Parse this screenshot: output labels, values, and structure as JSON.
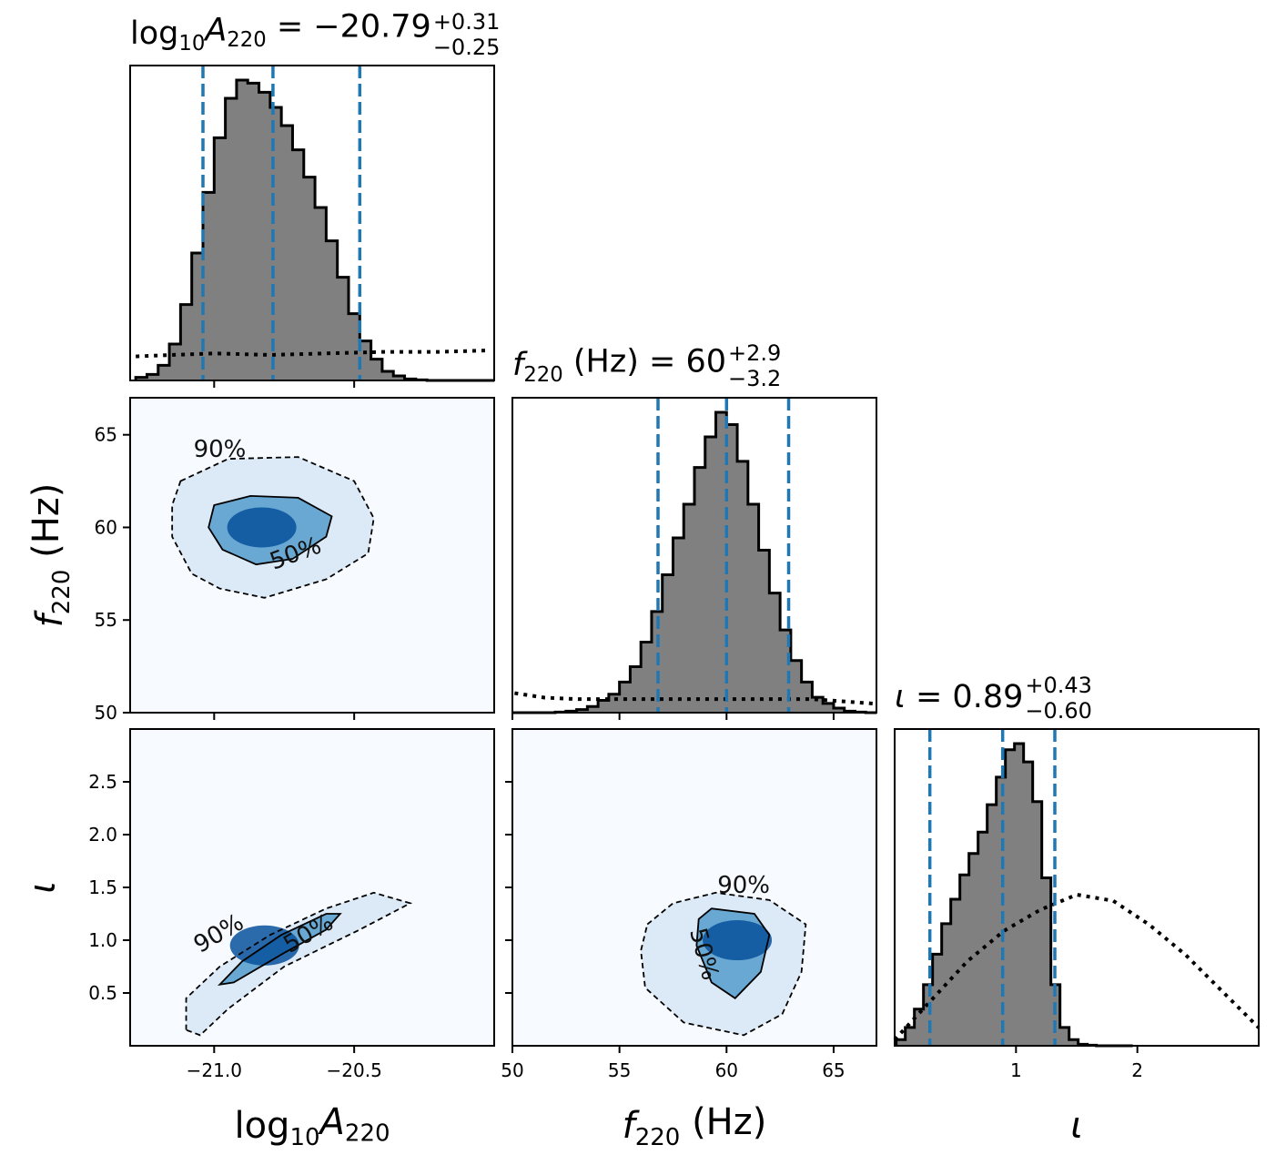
{
  "figure": {
    "type": "corner",
    "parameters": [
      {
        "symbol": "log10A220",
        "xlabel_main": "log",
        "xlabel_sub": "10",
        "xlabel_var": "A",
        "xlabel_sub2": "220",
        "xlabel_unit": "",
        "range": [
          -21.3,
          -20.0
        ]
      },
      {
        "symbol": "f220",
        "xlabel_main": "",
        "xlabel_sub": "",
        "xlabel_var": "f",
        "xlabel_sub2": "220",
        "xlabel_unit": " (Hz)",
        "range": [
          50,
          67
        ]
      },
      {
        "symbol": "iota",
        "xlabel_main": "",
        "xlabel_sub": "",
        "xlabel_var": "ι",
        "xlabel_sub2": "",
        "xlabel_unit": "",
        "range": [
          0.0,
          3.0
        ]
      }
    ],
    "titles": [
      {
        "pre": "log",
        "sub1": "10",
        "var": "A",
        "sub2": "220",
        "eq": " = −20.79",
        "plus": "+0.31",
        "minus": "−0.25"
      },
      {
        "pre": "",
        "sub1": "",
        "var": "f",
        "sub2": "220",
        "eq": " (Hz) = 60",
        "plus": "+2.9",
        "minus": "−3.2"
      },
      {
        "pre": "",
        "sub1": "",
        "var": "ι",
        "sub2": "",
        "eq": " = 0.89",
        "plus": "+0.43",
        "minus": "−0.60"
      }
    ],
    "colors": {
      "hist_fill": "#808080",
      "hist_edge": "#000000",
      "quantile": "#1f77b4",
      "prior": "#000000",
      "density": "#08519c",
      "density_low": "#f7fbff"
    }
  },
  "chart_data": [
    {
      "type": "histogram",
      "param": "log10A220",
      "xlim": [
        -21.3,
        -20.0
      ],
      "quantiles": [
        -21.04,
        -20.79,
        -20.48
      ],
      "posterior": {
        "centers": [
          -21.26,
          -21.22,
          -21.18,
          -21.14,
          -21.1,
          -21.06,
          -21.02,
          -20.98,
          -20.94,
          -20.9,
          -20.86,
          -20.82,
          -20.78,
          -20.74,
          -20.7,
          -20.66,
          -20.62,
          -20.58,
          -20.54,
          -20.5,
          -20.46,
          -20.42,
          -20.38,
          -20.34,
          -20.3,
          -20.26,
          -20.22,
          -20.18,
          -20.14,
          -20.1,
          -20.06,
          -20.02
        ],
        "counts": [
          0.01,
          0.02,
          0.05,
          0.12,
          0.25,
          0.42,
          0.62,
          0.8,
          0.93,
          0.99,
          0.98,
          0.95,
          0.9,
          0.84,
          0.76,
          0.67,
          0.57,
          0.46,
          0.34,
          0.22,
          0.13,
          0.07,
          0.03,
          0.015,
          0.005,
          0.002,
          0,
          0,
          0,
          0,
          0,
          0
        ]
      },
      "prior": {
        "x": [
          -21.28,
          -21.15,
          -21.0,
          -20.8,
          -20.6,
          -20.4,
          -20.2,
          -20.02
        ],
        "y": [
          0.08,
          0.085,
          0.09,
          0.085,
          0.09,
          0.095,
          0.095,
          0.1
        ]
      }
    },
    {
      "type": "histogram",
      "param": "f220",
      "xlim": [
        50,
        67
      ],
      "quantiles": [
        56.8,
        60.0,
        62.9
      ],
      "posterior": {
        "centers": [
          50.25,
          50.75,
          51.25,
          51.75,
          52.25,
          52.75,
          53.25,
          53.75,
          54.25,
          54.75,
          55.25,
          55.75,
          56.25,
          56.75,
          57.25,
          57.75,
          58.25,
          58.75,
          59.25,
          59.75,
          60.25,
          60.75,
          61.25,
          61.75,
          62.25,
          62.75,
          63.25,
          63.75,
          64.25,
          64.75,
          65.25,
          65.75,
          66.25,
          66.75
        ],
        "counts": [
          0,
          0,
          0,
          0,
          0.002,
          0.005,
          0.01,
          0.02,
          0.04,
          0.06,
          0.1,
          0.15,
          0.23,
          0.33,
          0.45,
          0.57,
          0.68,
          0.8,
          0.9,
          0.98,
          0.94,
          0.82,
          0.68,
          0.53,
          0.39,
          0.27,
          0.17,
          0.1,
          0.05,
          0.03,
          0.015,
          0.005,
          0.002,
          0
        ]
      },
      "prior": {
        "x": [
          50.1,
          51.5,
          53,
          55,
          58,
          61,
          64,
          66.9
        ],
        "y": [
          0.065,
          0.05,
          0.045,
          0.045,
          0.045,
          0.045,
          0.045,
          0.03
        ]
      }
    },
    {
      "type": "histogram",
      "param": "iota",
      "xlim": [
        0.0,
        3.0
      ],
      "quantiles": [
        0.29,
        0.89,
        1.32
      ],
      "posterior": {
        "centers": [
          0.05,
          0.125,
          0.2,
          0.275,
          0.35,
          0.425,
          0.5,
          0.575,
          0.65,
          0.725,
          0.8,
          0.875,
          0.95,
          1.025,
          1.1,
          1.175,
          1.25,
          1.325,
          1.4,
          1.475,
          1.55,
          1.625,
          1.7,
          1.775,
          1.85,
          1.925
        ],
        "counts": [
          0.02,
          0.06,
          0.12,
          0.2,
          0.3,
          0.4,
          0.48,
          0.56,
          0.63,
          0.7,
          0.79,
          0.88,
          0.97,
          0.99,
          0.93,
          0.8,
          0.55,
          0.2,
          0.06,
          0.02,
          0.005,
          0.002,
          0,
          0,
          0,
          0
        ]
      },
      "prior": {
        "x": [
          0.0,
          0.3,
          0.6,
          0.9,
          1.2,
          1.5,
          1.8,
          2.1,
          2.4,
          2.7,
          3.0
        ],
        "y": [
          0.02,
          0.15,
          0.28,
          0.38,
          0.45,
          0.5,
          0.48,
          0.4,
          0.3,
          0.18,
          0.06
        ]
      }
    },
    {
      "type": "heatmap",
      "x_param": "log10A220",
      "y_param": "f220",
      "xlim": [
        -21.3,
        -20.0
      ],
      "ylim": [
        50,
        67
      ],
      "peak": [
        -20.83,
        60.0
      ],
      "contour_50": [
        [
          -21.0,
          61.2
        ],
        [
          -20.87,
          61.7
        ],
        [
          -20.7,
          61.6
        ],
        [
          -20.58,
          60.6
        ],
        [
          -20.6,
          59.5
        ],
        [
          -20.72,
          58.3
        ],
        [
          -20.85,
          58.0
        ],
        [
          -20.97,
          58.8
        ],
        [
          -21.02,
          60.0
        ]
      ],
      "contour_90": [
        [
          -21.12,
          62.5
        ],
        [
          -20.95,
          63.7
        ],
        [
          -20.7,
          63.8
        ],
        [
          -20.5,
          62.5
        ],
        [
          -20.43,
          60.5
        ],
        [
          -20.45,
          58.6
        ],
        [
          -20.6,
          57.2
        ],
        [
          -20.82,
          56.2
        ],
        [
          -20.98,
          56.7
        ],
        [
          -21.08,
          57.5
        ],
        [
          -21.15,
          59.5
        ],
        [
          -21.15,
          61.2
        ]
      ],
      "labels": [
        {
          "text": "90%",
          "x": -20.98,
          "y": 63.8,
          "angle": 0
        },
        {
          "text": "50%",
          "x": -20.7,
          "y": 58.2,
          "angle": -20
        }
      ]
    },
    {
      "type": "heatmap",
      "x_param": "log10A220",
      "y_param": "iota",
      "xlim": [
        -21.3,
        -20.0
      ],
      "ylim": [
        0.0,
        3.0
      ],
      "peak": [
        -20.82,
        0.95
      ],
      "contour_50": [
        [
          -20.98,
          0.58
        ],
        [
          -20.9,
          0.8
        ],
        [
          -20.76,
          1.05
        ],
        [
          -20.6,
          1.25
        ],
        [
          -20.55,
          1.25
        ],
        [
          -20.6,
          1.1
        ],
        [
          -20.75,
          0.88
        ],
        [
          -20.93,
          0.6
        ]
      ],
      "contour_90": [
        [
          -21.1,
          0.15
        ],
        [
          -21.1,
          0.45
        ],
        [
          -20.98,
          0.75
        ],
        [
          -20.8,
          1.05
        ],
        [
          -20.6,
          1.3
        ],
        [
          -20.43,
          1.45
        ],
        [
          -20.3,
          1.35
        ],
        [
          -20.48,
          1.1
        ],
        [
          -20.75,
          0.75
        ],
        [
          -20.95,
          0.35
        ],
        [
          -21.05,
          0.1
        ]
      ],
      "labels": [
        {
          "text": "90%",
          "x": -20.97,
          "y": 1.0,
          "angle": -30
        },
        {
          "text": "50%",
          "x": -20.65,
          "y": 1.0,
          "angle": -30
        }
      ]
    },
    {
      "type": "heatmap",
      "x_param": "f220",
      "y_param": "iota",
      "xlim": [
        50,
        67
      ],
      "ylim": [
        0.0,
        3.0
      ],
      "peak": [
        60.5,
        1.0
      ],
      "contour_50": [
        [
          58.7,
          1.2
        ],
        [
          59.3,
          1.3
        ],
        [
          61.3,
          1.25
        ],
        [
          62.0,
          1.05
        ],
        [
          61.6,
          0.7
        ],
        [
          60.4,
          0.45
        ],
        [
          59.3,
          0.6
        ],
        [
          58.6,
          0.95
        ]
      ],
      "contour_90": [
        [
          56.3,
          1.15
        ],
        [
          57.5,
          1.35
        ],
        [
          59.5,
          1.45
        ],
        [
          62.0,
          1.38
        ],
        [
          63.7,
          1.15
        ],
        [
          63.5,
          0.7
        ],
        [
          62.6,
          0.3
        ],
        [
          60.8,
          0.1
        ],
        [
          58.0,
          0.22
        ],
        [
          56.2,
          0.55
        ],
        [
          56.0,
          0.9
        ]
      ],
      "labels": [
        {
          "text": "90%",
          "x": 60.8,
          "y": 1.45,
          "angle": 0
        },
        {
          "text": "50%",
          "x": 58.6,
          "y": 0.85,
          "angle": 75
        }
      ]
    }
  ],
  "ticks": {
    "log10A220": {
      "values": [
        -21.0,
        -20.5
      ],
      "labels": [
        "−21.0",
        "−20.5"
      ]
    },
    "f220_x": {
      "values": [
        50,
        55,
        60,
        65
      ],
      "labels": [
        "50",
        "55",
        "60",
        "65"
      ]
    },
    "f220_y": {
      "values": [
        50,
        55,
        60,
        65
      ],
      "labels": [
        "50",
        "55",
        "60",
        "65"
      ]
    },
    "iota_x": {
      "values": [
        1,
        2
      ],
      "labels": [
        "1",
        "2"
      ]
    },
    "iota_y": {
      "values": [
        0.5,
        1.0,
        1.5,
        2.0,
        2.5
      ],
      "labels": [
        "0.5",
        "1.0",
        "1.5",
        "2.0",
        "2.5"
      ]
    }
  }
}
